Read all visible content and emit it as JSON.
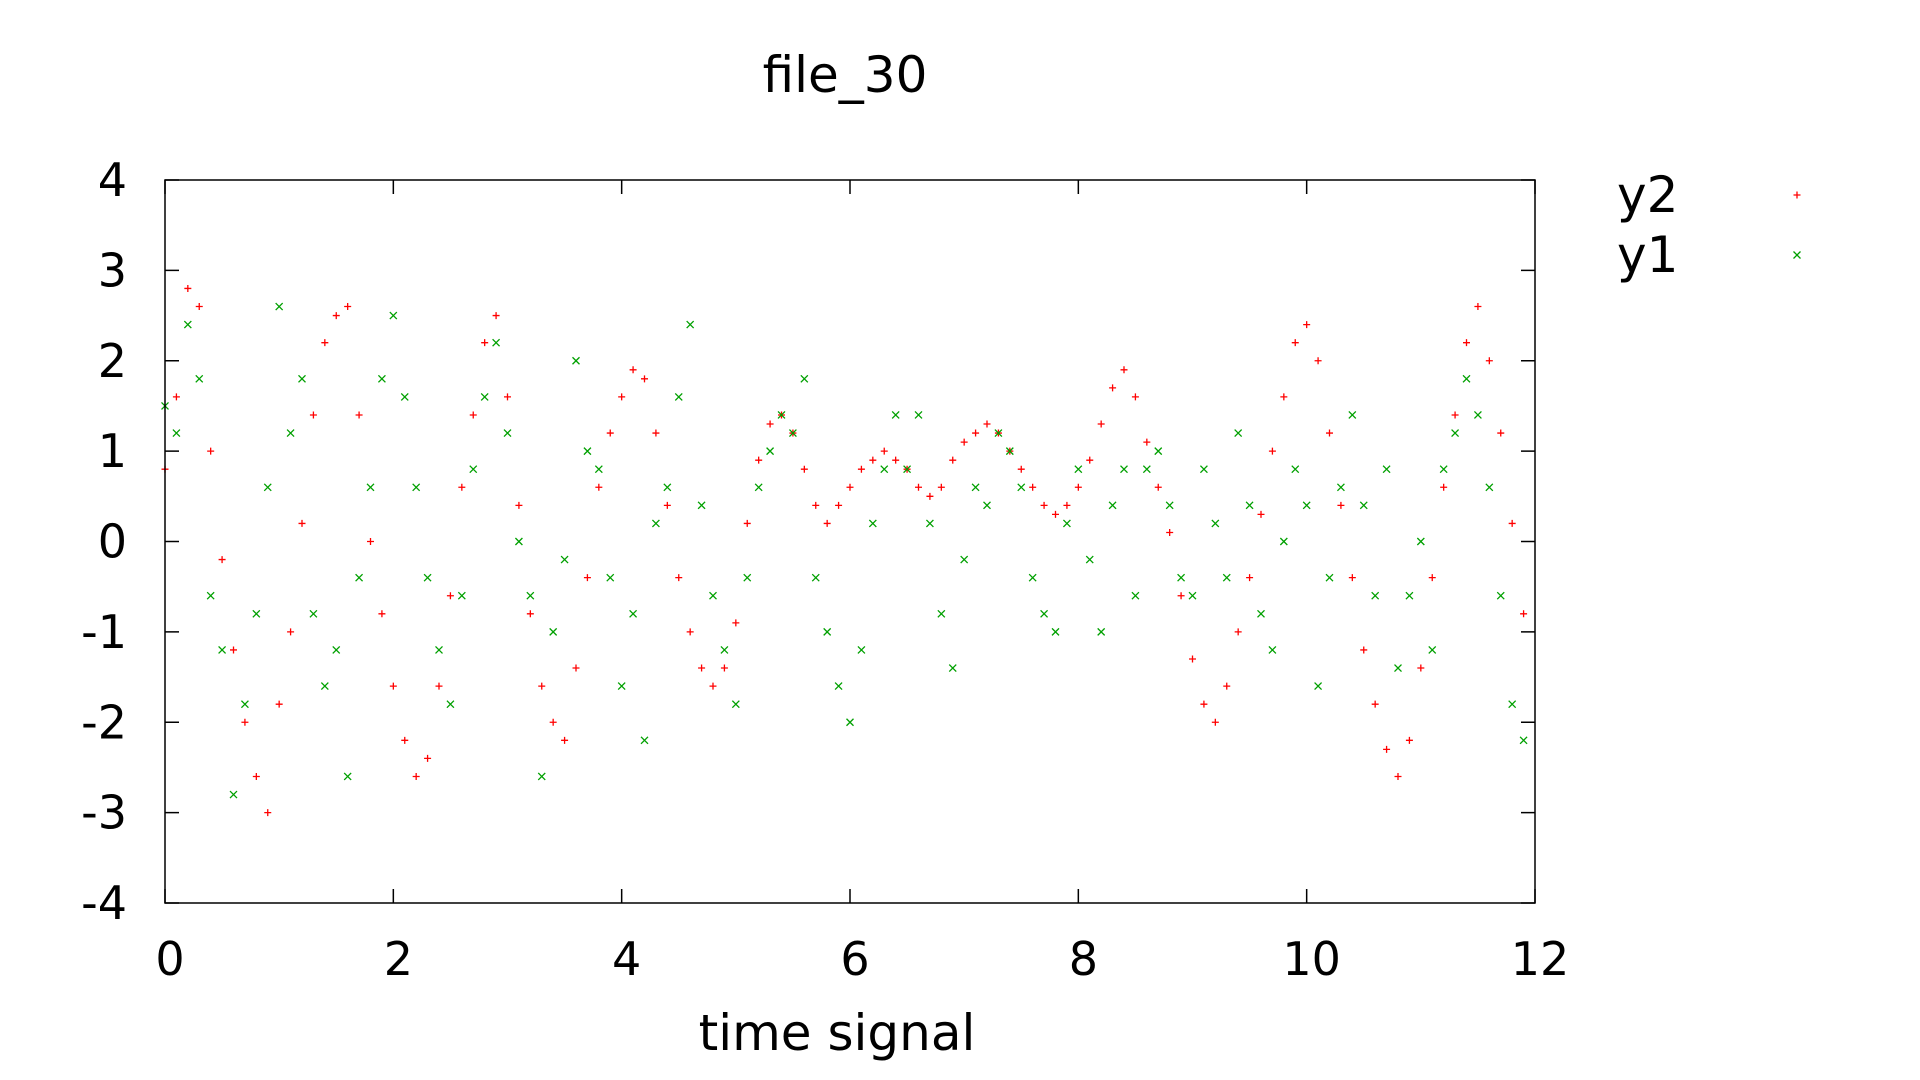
{
  "chart_data": {
    "type": "scatter",
    "title": "file_30",
    "xlabel": "time signal",
    "ylabel": "",
    "xlim": [
      0,
      12
    ],
    "ylim": [
      -4,
      4
    ],
    "xticks": [
      0,
      2,
      4,
      6,
      8,
      10,
      12
    ],
    "yticks": [
      -4,
      -3,
      -2,
      -1,
      0,
      1,
      2,
      3,
      4
    ],
    "grid": false,
    "legend_position": "outside-right",
    "series": [
      {
        "name": "y2",
        "marker": "+",
        "color": "#ff0000",
        "x": [
          0.0,
          0.1,
          0.2,
          0.3,
          0.4,
          0.5,
          0.6,
          0.7,
          0.8,
          0.9,
          1.0,
          1.1,
          1.2,
          1.3,
          1.4,
          1.5,
          1.6,
          1.7,
          1.8,
          1.9,
          2.0,
          2.1,
          2.2,
          2.3,
          2.4,
          2.5,
          2.6,
          2.7,
          2.8,
          2.9,
          3.0,
          3.1,
          3.2,
          3.3,
          3.4,
          3.5,
          3.6,
          3.7,
          3.8,
          3.9,
          4.0,
          4.1,
          4.2,
          4.3,
          4.4,
          4.5,
          4.6,
          4.7,
          4.8,
          4.9,
          5.0,
          5.1,
          5.2,
          5.3,
          5.4,
          5.5,
          5.6,
          5.7,
          5.8,
          5.9,
          6.0,
          6.1,
          6.2,
          6.3,
          6.4,
          6.5,
          6.6,
          6.7,
          6.8,
          6.9,
          7.0,
          7.1,
          7.2,
          7.3,
          7.4,
          7.5,
          7.6,
          7.7,
          7.8,
          7.9,
          8.0,
          8.1,
          8.2,
          8.3,
          8.4,
          8.5,
          8.6,
          8.7,
          8.8,
          8.9,
          9.0,
          9.1,
          9.2,
          9.3,
          9.4,
          9.5,
          9.6,
          9.7,
          9.8,
          9.9,
          10.0,
          10.1,
          10.2,
          10.3,
          10.4,
          10.5,
          10.6,
          10.7,
          10.8,
          10.9,
          11.0,
          11.1,
          11.2,
          11.3,
          11.4,
          11.5,
          11.6,
          11.7,
          11.8,
          11.9
        ],
        "y": [
          0.8,
          1.6,
          2.8,
          2.6,
          1.0,
          -0.2,
          -1.2,
          -2.0,
          -2.6,
          -3.0,
          -1.8,
          -1.0,
          0.2,
          1.4,
          2.2,
          2.5,
          2.6,
          1.4,
          0.0,
          -0.8,
          -1.6,
          -2.2,
          -2.6,
          -2.4,
          -1.6,
          -0.6,
          0.6,
          1.4,
          2.2,
          2.5,
          1.6,
          0.4,
          -0.8,
          -1.6,
          -2.0,
          -2.2,
          -1.4,
          -0.4,
          0.6,
          1.2,
          1.6,
          1.9,
          1.8,
          1.2,
          0.4,
          -0.4,
          -1.0,
          -1.4,
          -1.6,
          -1.4,
          -0.9,
          0.2,
          0.9,
          1.3,
          1.4,
          1.2,
          0.8,
          0.4,
          0.2,
          0.4,
          0.6,
          0.8,
          0.9,
          1.0,
          0.9,
          0.8,
          0.6,
          0.5,
          0.6,
          0.9,
          1.1,
          1.2,
          1.3,
          1.2,
          1.0,
          0.8,
          0.6,
          0.4,
          0.3,
          0.4,
          0.6,
          0.9,
          1.3,
          1.7,
          1.9,
          1.6,
          1.1,
          0.6,
          0.1,
          -0.6,
          -1.3,
          -1.8,
          -2.0,
          -1.6,
          -1.0,
          -0.4,
          0.3,
          1.0,
          1.6,
          2.2,
          2.4,
          2.0,
          1.2,
          0.4,
          -0.4,
          -1.2,
          -1.8,
          -2.3,
          -2.6,
          -2.2,
          -1.4,
          -0.4,
          0.6,
          1.4,
          2.2,
          2.6,
          2.0,
          1.2,
          0.2,
          -0.8
        ]
      },
      {
        "name": "y1",
        "marker": "x",
        "color": "#00a000",
        "x": [
          0.0,
          0.1,
          0.2,
          0.3,
          0.4,
          0.5,
          0.6,
          0.7,
          0.8,
          0.9,
          1.0,
          1.1,
          1.2,
          1.3,
          1.4,
          1.5,
          1.6,
          1.7,
          1.8,
          1.9,
          2.0,
          2.1,
          2.2,
          2.3,
          2.4,
          2.5,
          2.6,
          2.7,
          2.8,
          2.9,
          3.0,
          3.1,
          3.2,
          3.3,
          3.4,
          3.5,
          3.6,
          3.7,
          3.8,
          3.9,
          4.0,
          4.1,
          4.2,
          4.3,
          4.4,
          4.5,
          4.6,
          4.7,
          4.8,
          4.9,
          5.0,
          5.1,
          5.2,
          5.3,
          5.4,
          5.5,
          5.6,
          5.7,
          5.8,
          5.9,
          6.0,
          6.1,
          6.2,
          6.3,
          6.4,
          6.5,
          6.6,
          6.7,
          6.8,
          6.9,
          7.0,
          7.1,
          7.2,
          7.3,
          7.4,
          7.5,
          7.6,
          7.7,
          7.8,
          7.9,
          8.0,
          8.1,
          8.2,
          8.3,
          8.4,
          8.5,
          8.6,
          8.7,
          8.8,
          8.9,
          9.0,
          9.1,
          9.2,
          9.3,
          9.4,
          9.5,
          9.6,
          9.7,
          9.8,
          9.9,
          10.0,
          10.1,
          10.2,
          10.3,
          10.4,
          10.5,
          10.6,
          10.7,
          10.8,
          10.9,
          11.0,
          11.1,
          11.2,
          11.3,
          11.4,
          11.5,
          11.6,
          11.7,
          11.8,
          11.9
        ],
        "y": [
          1.5,
          1.2,
          2.4,
          1.8,
          -0.6,
          -1.2,
          -2.8,
          -1.8,
          -0.8,
          0.6,
          2.6,
          1.2,
          1.8,
          -0.8,
          -1.6,
          -1.2,
          -2.6,
          -0.4,
          0.6,
          1.8,
          2.5,
          1.6,
          0.6,
          -0.4,
          -1.2,
          -1.8,
          -0.6,
          0.8,
          1.6,
          2.2,
          1.2,
          0.0,
          -0.6,
          -2.6,
          -1.0,
          -0.2,
          2.0,
          1.0,
          0.8,
          -0.4,
          -1.6,
          -0.8,
          -2.2,
          0.2,
          0.6,
          1.6,
          2.4,
          0.4,
          -0.6,
          -1.2,
          -1.8,
          -0.4,
          0.6,
          1.0,
          1.4,
          1.2,
          1.8,
          -0.4,
          -1.0,
          -1.6,
          -2.0,
          -1.2,
          0.2,
          0.8,
          1.4,
          0.8,
          1.4,
          0.2,
          -0.8,
          -1.4,
          -0.2,
          0.6,
          0.4,
          1.2,
          1.0,
          0.6,
          -0.4,
          -0.8,
          -1.0,
          0.2,
          0.8,
          -0.2,
          -1.0,
          0.4,
          0.8,
          -0.6,
          0.8,
          1.0,
          0.4,
          -0.4,
          -0.6,
          0.8,
          0.2,
          -0.4,
          1.2,
          0.4,
          -0.8,
          -1.2,
          0.0,
          0.8,
          0.4,
          -1.6,
          -0.4,
          0.6,
          1.4,
          0.4,
          -0.6,
          0.8,
          -1.4,
          -0.6,
          0.0,
          -1.2,
          0.8,
          1.2,
          1.8,
          1.4,
          0.6,
          -0.6,
          -1.8,
          -2.2
        ]
      }
    ]
  }
}
